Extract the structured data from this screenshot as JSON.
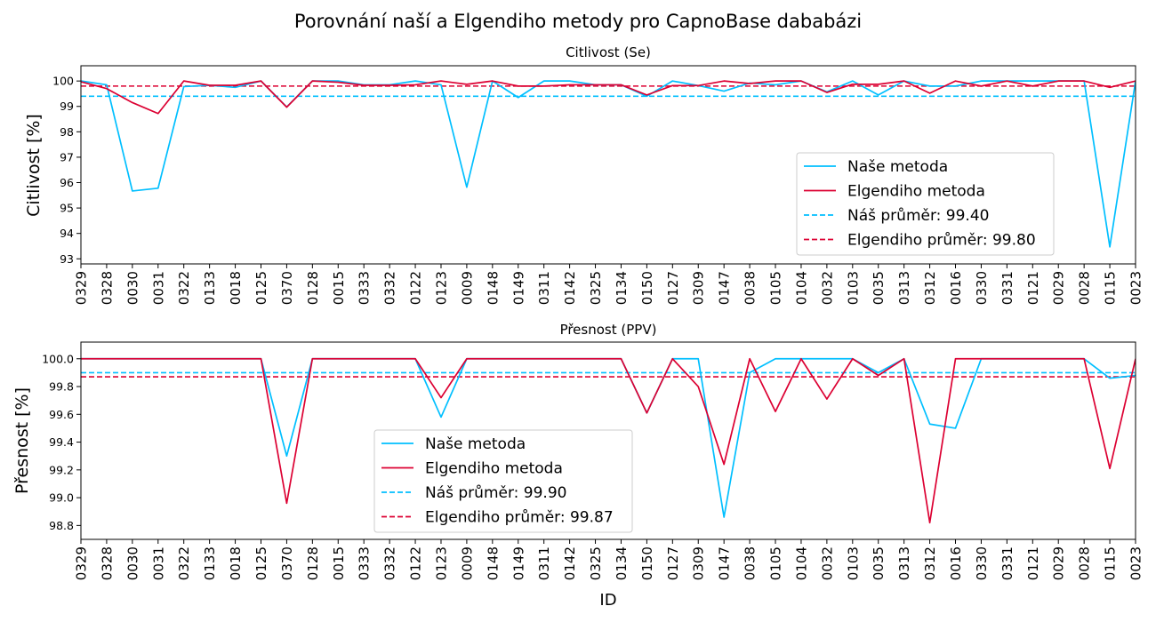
{
  "suptitle": "Porovnání naší a Elgendiho metody pro CapnoBase dababázi",
  "colors": {
    "ours": "#00bfff",
    "elgendi": "#dc0032"
  },
  "chart_data": [
    {
      "type": "line",
      "title": "Citlivost (Se)",
      "xlabel": "",
      "ylabel": "Citlivost [%]",
      "ylim": [
        92.8,
        100.6
      ],
      "yticks": [
        "93",
        "94",
        "95",
        "96",
        "97",
        "98",
        "99",
        "100"
      ],
      "legend_position": "lower-right",
      "categories": [
        "0329",
        "0328",
        "0030",
        "0031",
        "0322",
        "0133",
        "0018",
        "0125",
        "0370",
        "0128",
        "0015",
        "0333",
        "0332",
        "0122",
        "0123",
        "0009",
        "0148",
        "0149",
        "0311",
        "0142",
        "0325",
        "0134",
        "0150",
        "0127",
        "0309",
        "0147",
        "0038",
        "0105",
        "0104",
        "0032",
        "0103",
        "0035",
        "0313",
        "0312",
        "0016",
        "0330",
        "0331",
        "0121",
        "0029",
        "0028",
        "0115",
        "0023"
      ],
      "series": [
        {
          "name": "Naše metoda",
          "style": "solid",
          "color": "#00bfff",
          "values": [
            100,
            99.85,
            95.67,
            95.78,
            99.78,
            99.83,
            99.75,
            100,
            98.98,
            100,
            100,
            99.85,
            99.85,
            100,
            99.85,
            95.82,
            100,
            99.35,
            100,
            100,
            99.85,
            99.85,
            99.4,
            100,
            99.82,
            99.6,
            99.92,
            99.85,
            100,
            99.57,
            100,
            99.45,
            100,
            99.8,
            99.8,
            100,
            100,
            100,
            100,
            100,
            93.47,
            100
          ]
        },
        {
          "name": "Elgendiho metoda",
          "style": "solid",
          "color": "#dc0032",
          "values": [
            99.97,
            99.7,
            99.15,
            98.72,
            100,
            99.83,
            99.83,
            100,
            98.97,
            100,
            99.95,
            99.83,
            99.83,
            99.85,
            100,
            99.87,
            100,
            99.8,
            99.8,
            99.85,
            99.85,
            99.85,
            99.45,
            99.82,
            99.82,
            100,
            99.9,
            100,
            100,
            99.55,
            99.87,
            99.87,
            100,
            99.52,
            100,
            99.8,
            100,
            99.8,
            100,
            100,
            99.75,
            100
          ]
        },
        {
          "name": "Náš průměr: 99.40",
          "style": "dashed",
          "color": "#00bfff",
          "constant": 99.4
        },
        {
          "name": "Elgendiho průměr: 99.80",
          "style": "dashed",
          "color": "#dc0032",
          "constant": 99.8
        }
      ]
    },
    {
      "type": "line",
      "title": "Přesnost (PPV)",
      "xlabel": "ID",
      "ylabel": "Přesnost [%]",
      "ylim": [
        98.7,
        100.12
      ],
      "yticks": [
        "98.8",
        "99.0",
        "99.2",
        "99.4",
        "99.6",
        "99.8",
        "100.0"
      ],
      "legend_position": "lower-center",
      "categories": [
        "0329",
        "0328",
        "0030",
        "0031",
        "0322",
        "0133",
        "0018",
        "0125",
        "0370",
        "0128",
        "0015",
        "0333",
        "0332",
        "0122",
        "0123",
        "0009",
        "0148",
        "0149",
        "0311",
        "0142",
        "0325",
        "0134",
        "0150",
        "0127",
        "0309",
        "0147",
        "0038",
        "0105",
        "0104",
        "0032",
        "0103",
        "0035",
        "0313",
        "0312",
        "0016",
        "0330",
        "0331",
        "0121",
        "0029",
        "0028",
        "0115",
        "0023"
      ],
      "series": [
        {
          "name": "Naše metoda",
          "style": "solid",
          "color": "#00bfff",
          "values": [
            100,
            100,
            100,
            100,
            100,
            100,
            100,
            100,
            99.3,
            100,
            100,
            100,
            100,
            100,
            99.58,
            100,
            100,
            100,
            100,
            100,
            100,
            100,
            99.61,
            100,
            100,
            98.86,
            99.9,
            100,
            100,
            100,
            100,
            99.9,
            100,
            99.53,
            99.5,
            100,
            100,
            100,
            100,
            100,
            99.86,
            99.88
          ]
        },
        {
          "name": "Elgendiho metoda",
          "style": "solid",
          "color": "#dc0032",
          "values": [
            100,
            100,
            100,
            100,
            100,
            100,
            100,
            100,
            98.96,
            100,
            100,
            100,
            100,
            100,
            99.72,
            100,
            100,
            100,
            100,
            100,
            100,
            100,
            99.61,
            100,
            99.8,
            99.24,
            100,
            99.62,
            100,
            99.71,
            100,
            99.88,
            100,
            98.82,
            100,
            100,
            100,
            100,
            100,
            100,
            99.21,
            100
          ]
        },
        {
          "name": "Náš průměr: 99.90",
          "style": "dashed",
          "color": "#00bfff",
          "constant": 99.9
        },
        {
          "name": "Elgendiho průměr: 99.87",
          "style": "dashed",
          "color": "#dc0032",
          "constant": 99.87
        }
      ]
    }
  ]
}
